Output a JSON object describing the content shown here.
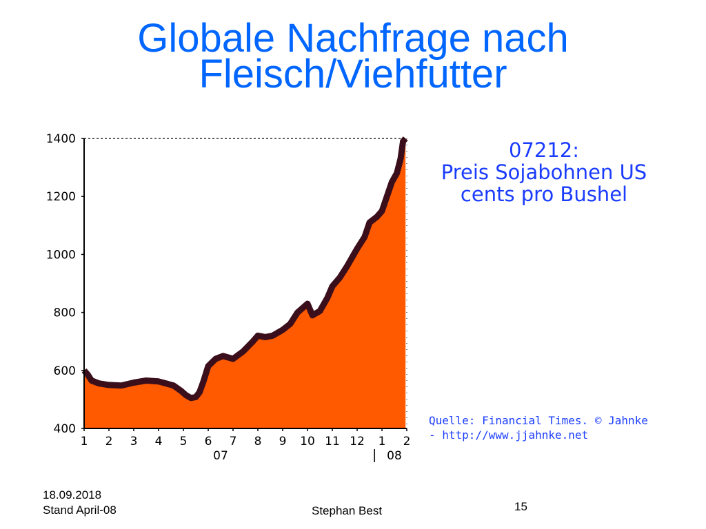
{
  "slide": {
    "title_line1": "Globale Nachfrage nach",
    "title_line2": "Fleisch/Viehfutter",
    "footer_date": "18.09.2018",
    "footer_status": "Stand April-08",
    "footer_author": "Stephan Best",
    "page_number": "15"
  },
  "chart_data": {
    "type": "area",
    "title_lines": [
      "07212:",
      "Preis Sojabohnen US",
      "cents pro Bushel"
    ],
    "source_lines": [
      "Quelle: Financial Times. © Jahnke",
      "- http://www.jjahnke.net"
    ],
    "ylim": [
      400,
      1400
    ],
    "yticks": [
      400,
      600,
      800,
      1000,
      1200,
      1400
    ],
    "xlim": [
      1,
      14
    ],
    "xticks": [
      {
        "x": 1,
        "label": "1"
      },
      {
        "x": 2,
        "label": "2"
      },
      {
        "x": 3,
        "label": "3"
      },
      {
        "x": 4,
        "label": "4"
      },
      {
        "x": 5,
        "label": "5"
      },
      {
        "x": 6,
        "label": "6"
      },
      {
        "x": 7,
        "label": "7"
      },
      {
        "x": 8,
        "label": "8"
      },
      {
        "x": 9,
        "label": "9"
      },
      {
        "x": 10,
        "label": "10"
      },
      {
        "x": 11,
        "label": "11"
      },
      {
        "x": 12,
        "label": "12"
      },
      {
        "x": 13,
        "label": "1"
      },
      {
        "x": 14,
        "label": "2"
      }
    ],
    "year_labels": [
      {
        "x": 6.5,
        "label": "07"
      },
      {
        "x": 13.5,
        "label": "08"
      }
    ],
    "year_divider_x": 12.7,
    "fill_color": "#ff5a00",
    "line_color": "#3a0e1a",
    "series": [
      {
        "x": [
          1.0,
          1.15,
          1.3,
          1.6,
          2.0,
          2.5,
          3.0,
          3.5,
          4.0,
          4.3,
          4.6,
          4.9,
          5.1,
          5.3,
          5.5,
          5.65,
          5.8,
          6.0,
          6.3,
          6.6,
          7.0,
          7.4,
          7.8,
          8.0,
          8.3,
          8.6,
          9.0,
          9.3,
          9.6,
          10.0,
          10.2,
          10.5,
          10.8,
          11.0,
          11.3,
          11.6,
          12.0,
          12.3,
          12.5,
          12.8,
          13.0,
          13.2,
          13.4,
          13.6,
          13.75,
          13.85,
          13.95
        ],
        "y": [
          600,
          585,
          565,
          555,
          550,
          548,
          558,
          565,
          562,
          555,
          548,
          530,
          515,
          505,
          508,
          525,
          560,
          615,
          640,
          650,
          640,
          665,
          700,
          720,
          715,
          720,
          740,
          760,
          800,
          830,
          790,
          805,
          850,
          890,
          920,
          960,
          1020,
          1060,
          1110,
          1130,
          1150,
          1200,
          1250,
          1280,
          1330,
          1390,
          1400
        ]
      }
    ]
  }
}
